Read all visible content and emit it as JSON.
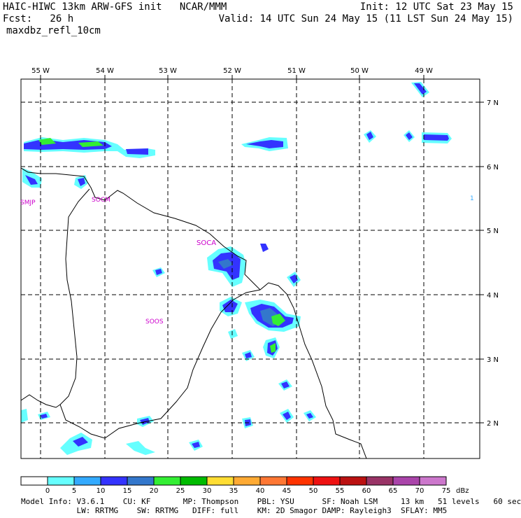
{
  "header": {
    "title": "HAIC-HIWC 13km ARW-GFS init   NCAR/MMM",
    "init": "Init: 12 UTC Sat 23 May 15",
    "fcst": "Fcst:   26 h",
    "valid": "Valid: 14 UTC Sun 24 May 15 (11 LST Sun 24 May 15)",
    "field": "maxdbz_refl_10cm"
  },
  "map": {
    "lon_labels": [
      "55 W",
      "54 W",
      "53 W",
      "52 W",
      "51 W",
      "50 W",
      "49 W"
    ],
    "lat_labels": [
      "7 N",
      "6 N",
      "5 N",
      "4 N",
      "3 N",
      "2 N"
    ],
    "stations": [
      {
        "id": "SMJP"
      },
      {
        "id": "SOCM"
      },
      {
        "id": "SOCA"
      },
      {
        "id": "SOOS"
      },
      {
        "id": "1"
      }
    ],
    "grid_color": "#000000",
    "coast_color": "#000000",
    "station_color": "#cc00cc"
  },
  "colorbar": {
    "levels": [
      "0",
      "5",
      "10",
      "15",
      "20",
      "25",
      "30",
      "35",
      "40",
      "45",
      "50",
      "55",
      "60",
      "65",
      "70",
      "75"
    ],
    "unit": "dBz",
    "colors": [
      "#ffffff",
      "#66ffff",
      "#33aaff",
      "#3333ff",
      "#3377cc",
      "#33ee33",
      "#00bb00",
      "#ffdd33",
      "#ffaa33",
      "#ff7733",
      "#ff3300",
      "#ee1111",
      "#bb1111",
      "#993366",
      "#aa44aa",
      "#cc77cc"
    ]
  },
  "footer": {
    "line1": "Model Info: V3.6.1    CU: KF       MP: Thompson    PBL: YSU      SF: Noah LSM     13 km   51 levels   60 sec",
    "line2": "            LW: RRTMG    SW: RRTMG   DIFF: full    KM: 2D Smagor DAMP: Rayleigh3  SFLAY: MM5"
  }
}
